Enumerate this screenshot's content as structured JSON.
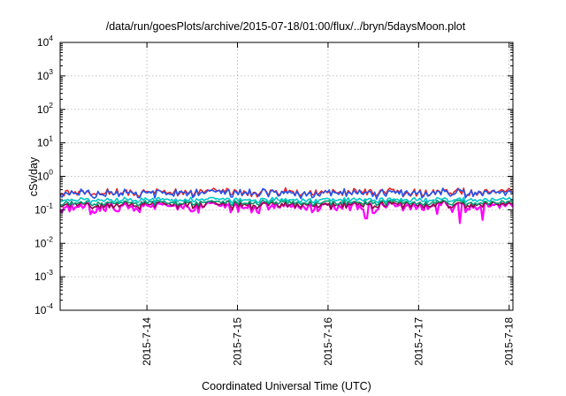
{
  "chart_data": {
    "type": "line",
    "title": "/data/run/goesPlots/archive/2015-07-18/01:00/flux/../bryn/5daysMoon.plot",
    "xlabel": "Coordinated Universal Time (UTC)",
    "ylabel": "cSv/day",
    "yscale": "log",
    "ylim": [
      0.0001,
      10000
    ],
    "xlim": [
      "2015-07-13 01:00",
      "2015-07-18 01:00"
    ],
    "grid": true,
    "y_ticks": [
      {
        "base": "10",
        "exp": "-4"
      },
      {
        "base": "10",
        "exp": "-3"
      },
      {
        "base": "10",
        "exp": "-2"
      },
      {
        "base": "10",
        "exp": "-1"
      },
      {
        "base": "10",
        "exp": "0"
      },
      {
        "base": "10",
        "exp": "1"
      },
      {
        "base": "10",
        "exp": "2"
      },
      {
        "base": "10",
        "exp": "3"
      },
      {
        "base": "10",
        "exp": "4"
      }
    ],
    "x_ticks": [
      "2015-7-14",
      "2015-7-15",
      "2015-7-16",
      "2015-7-17",
      "2015-7-18"
    ],
    "series": [
      {
        "color": "#ff00ff",
        "base": 0.13,
        "noise": 0.3,
        "dips": [
          {
            "date": "2015-07-16 10:00",
            "value": 0.055
          },
          {
            "date": "2015-07-16 12:00",
            "value": 0.08
          },
          {
            "date": "2015-07-17 11:00",
            "value": 0.04
          },
          {
            "date": "2015-07-17 17:00",
            "value": 0.05
          },
          {
            "date": "2015-07-17 05:00",
            "value": 0.075
          },
          {
            "date": "2015-07-13 16:00",
            "value": 0.09
          },
          {
            "date": "2015-07-14 12:00",
            "value": 0.09
          }
        ]
      },
      {
        "color": "#900040",
        "base": 0.145,
        "noise": 0.22,
        "dips": []
      },
      {
        "color": "#009e73",
        "base": 0.165,
        "noise": 0.15,
        "dips": []
      },
      {
        "color": "#00c8c8",
        "base": 0.2,
        "noise": 0.15,
        "dips": []
      },
      {
        "color": "#ee2222",
        "base": 0.34,
        "noise": 0.25,
        "dips": []
      },
      {
        "color": "#2255ee",
        "base": 0.32,
        "noise": 0.25,
        "dips": []
      }
    ]
  }
}
